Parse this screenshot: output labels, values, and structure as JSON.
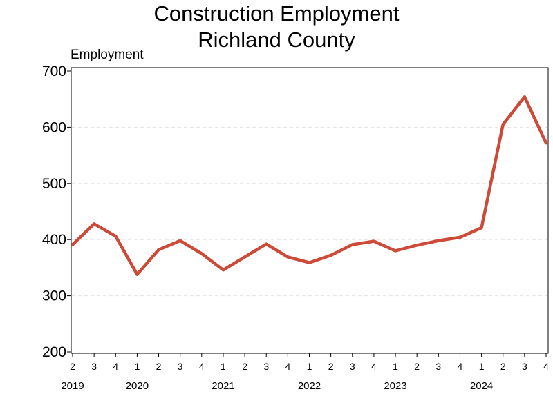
{
  "chart_data": {
    "type": "line",
    "title_lines": [
      "Construction Employment",
      "Richland County"
    ],
    "ylabel": "Employment",
    "xlabel": "",
    "ylim": [
      200,
      700
    ],
    "yticks": [
      200,
      300,
      400,
      500,
      600,
      700
    ],
    "grid": true,
    "legend": "none",
    "line_color": "#cc4a37",
    "categories": [
      "2",
      "3",
      "4",
      "1",
      "2",
      "3",
      "4",
      "1",
      "2",
      "3",
      "4",
      "1",
      "2",
      "3",
      "4",
      "1",
      "2",
      "3",
      "4",
      "1",
      "2",
      "3",
      "4"
    ],
    "years": [
      "2019",
      "2020",
      "2021",
      "2022",
      "2023",
      "2024"
    ],
    "year_index": [
      0,
      3,
      7,
      11,
      15,
      19
    ],
    "series": [
      {
        "values": [
          391,
          428,
          406,
          338,
          382,
          398,
          375,
          346,
          369,
          392,
          369,
          359,
          372,
          391,
          397,
          380,
          390,
          398,
          404,
          421,
          605,
          654,
          572
        ]
      }
    ]
  }
}
